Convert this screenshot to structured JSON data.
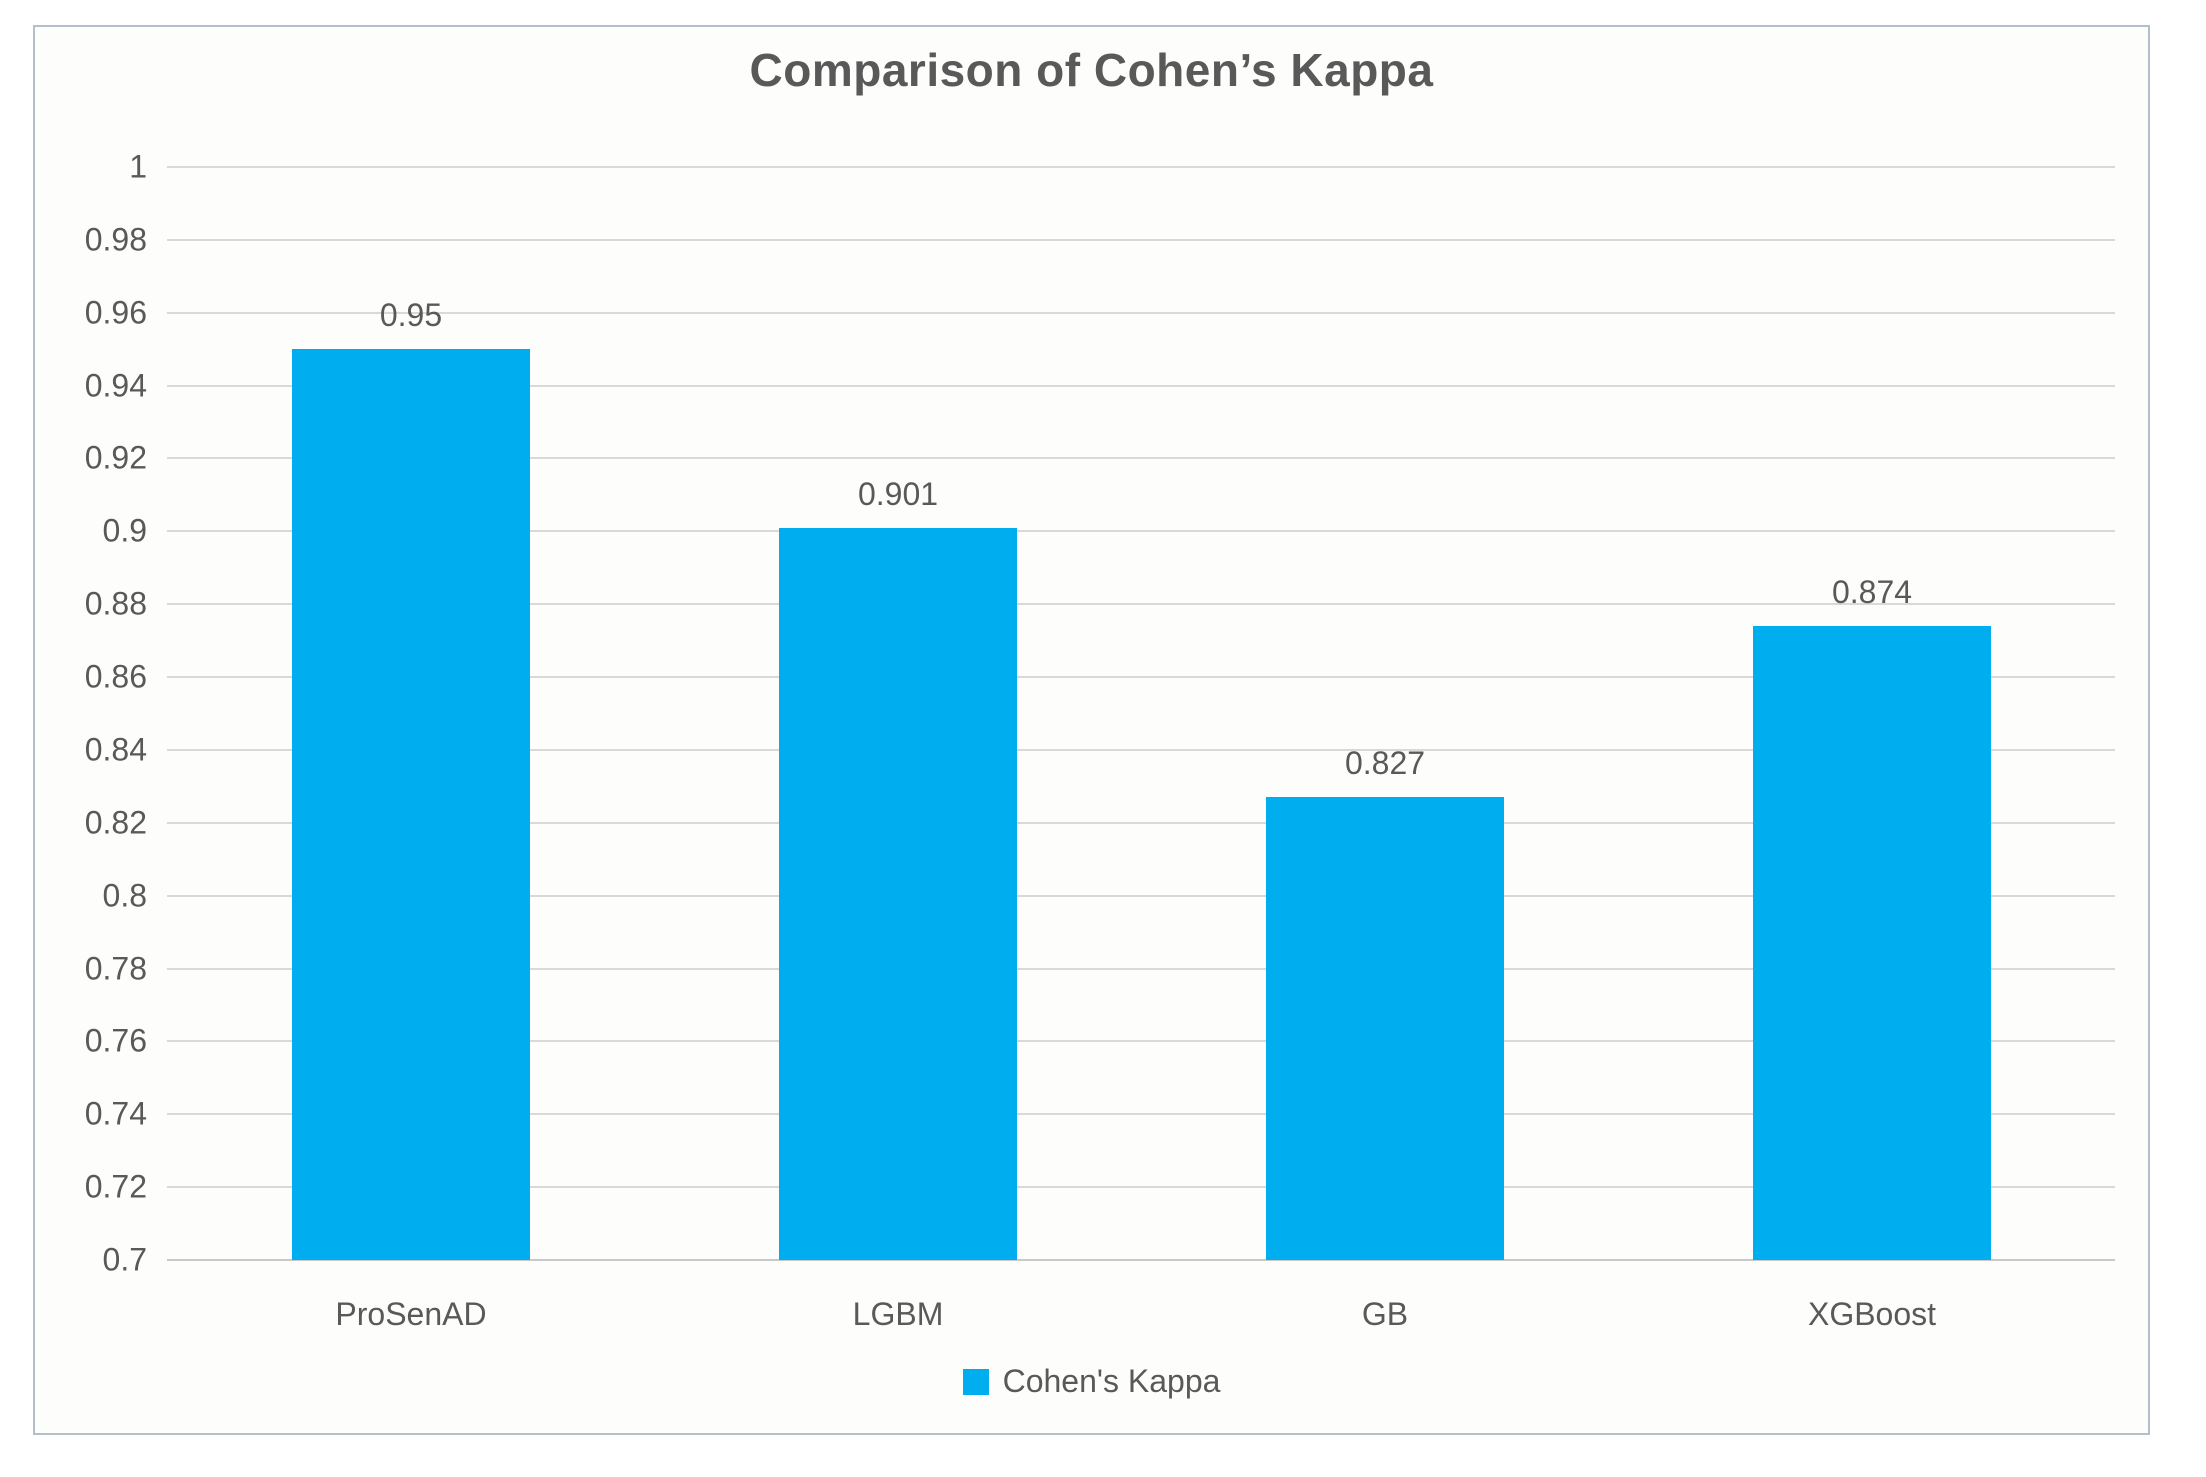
{
  "chart_data": {
    "type": "bar",
    "title": "Comparison of Cohen’s Kappa",
    "categories": [
      "ProSenAD",
      "LGBM",
      "GB",
      "XGBoost"
    ],
    "series": [
      {
        "name": "Cohen's Kappa",
        "values": [
          0.95,
          0.901,
          0.827,
          0.874
        ],
        "value_labels": [
          "0.95",
          "0.901",
          "0.827",
          "0.874"
        ]
      }
    ],
    "xlabel": "",
    "ylabel": "",
    "ylim": [
      0.7,
      1.0
    ],
    "ytick_step": 0.02,
    "ytick_labels": [
      "1",
      "0.98",
      "0.96",
      "0.94",
      "0.92",
      "0.9",
      "0.88",
      "0.86",
      "0.84",
      "0.82",
      "0.8",
      "0.78",
      "0.76",
      "0.74",
      "0.72",
      "0.7"
    ],
    "grid": true,
    "legend_position": "bottom",
    "colors": {
      "bar": "#00AEEF",
      "grid": "#D9D9D9",
      "text": "#595959",
      "frame_border": "#B3C0C9",
      "background": "#FDFDFC"
    }
  },
  "legend": {
    "label": "Cohen's Kappa"
  }
}
